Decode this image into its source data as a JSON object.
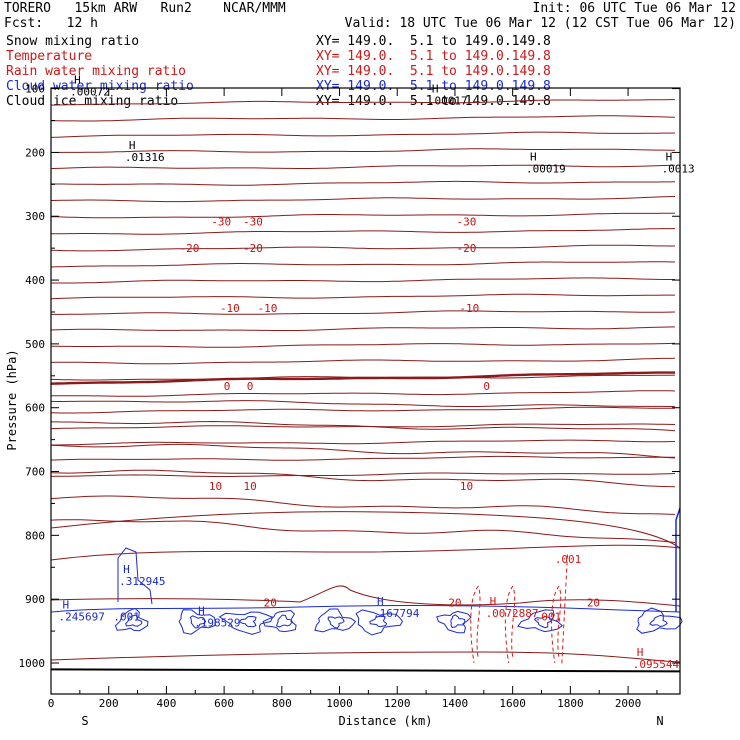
{
  "header": {
    "model": "TORERO   15km ARW   Run2    NCAR/MMM",
    "init": "Init: 06 UTC Tue 06 Mar 12",
    "fcst": "Fcst:   12 h",
    "valid": "Valid: 18 UTC Tue 06 Mar 12 (12 CST Tue 06 Mar 12)"
  },
  "legend": [
    {
      "name": "Snow mixing ratio",
      "xy": "XY= 149.0.  5.1 to 149.0.149.8",
      "color": "#000000"
    },
    {
      "name": "Temperature",
      "xy": "XY= 149.0.  5.1 to 149.0.149.8",
      "color": "#d01818"
    },
    {
      "name": "Rain water mixing ratio",
      "xy": "XY= 149.0.  5.1 to 149.0.149.8",
      "color": "#d01818"
    },
    {
      "name": "Cloud water mixing ratio",
      "xy": "XY= 149.0.  5.1 to 149.0.149.8",
      "color": "#1a2ad0"
    },
    {
      "name": "Cloud ice mixing ratio",
      "xy": "XY= 149.0.  5.1 to 149.0.149.8",
      "color": "#000000"
    }
  ],
  "chart_data": {
    "type": "cross-section contour",
    "xlabel": "Distance (km)",
    "ylabel": "Pressure (hPa)",
    "xlim": [
      0,
      2180
    ],
    "ylim": [
      1050,
      100
    ],
    "x_ticks": [
      0,
      200,
      400,
      600,
      800,
      1000,
      1200,
      1400,
      1600,
      1800,
      2000
    ],
    "y_ticks": [
      100,
      200,
      300,
      400,
      500,
      600,
      700,
      800,
      900,
      1000
    ],
    "end_labels": {
      "left": "S",
      "right": "N"
    },
    "temperature_isotherms": [
      {
        "value": -30,
        "label": "-30",
        "labels_at_km": [
          590,
          700,
          1440
        ]
      },
      {
        "value": -20,
        "label": "-20",
        "labels_at_km": [
          480,
          700,
          1440
        ]
      },
      {
        "value": -10,
        "label": "-10",
        "labels_at_km": [
          620,
          750,
          1450
        ]
      },
      {
        "value": 0,
        "label": "0",
        "labels_at_km": [
          610,
          690,
          1510
        ]
      },
      {
        "value": 10,
        "label": "10",
        "labels_at_km": [
          570,
          690,
          1440
        ]
      },
      {
        "value": 20,
        "label": "20",
        "labels_at_km": [
          760,
          1400,
          1880
        ]
      }
    ],
    "maxima_labels": [
      {
        "label": "H",
        "value": ".01316",
        "km": 270,
        "hpa": 210,
        "color": "#000000"
      },
      {
        "label": "H",
        "value": ".00019",
        "km": 1660,
        "hpa": 228,
        "color": "#000000"
      },
      {
        "label": "H",
        "value": ".0013",
        "km": 2130,
        "hpa": 228,
        "color": "#000000"
      },
      {
        "label": "H",
        "value": ".00017",
        "km": 1320,
        "hpa": 122,
        "color": "#000000"
      },
      {
        "label": "H",
        "value": ".00072",
        "km": 80,
        "hpa": 108,
        "color": "#000000"
      },
      {
        "label": "H",
        "value": ".312945",
        "km": 250,
        "hpa": 875,
        "color": "#1a2ad0"
      },
      {
        "label": "H",
        "value": ".245697",
        "km": 40,
        "hpa": 930,
        "color": "#1a2ad0"
      },
      {
        "label": "",
        "value": ".001",
        "km": 230,
        "hpa": 930,
        "color": "#1a2ad0"
      },
      {
        "label": "H",
        "value": ".198529",
        "km": 510,
        "hpa": 940,
        "color": "#1a2ad0"
      },
      {
        "label": "H",
        "value": ".167794",
        "km": 1130,
        "hpa": 925,
        "color": "#1a2ad0"
      },
      {
        "label": "H",
        "value": ".0072887",
        "km": 1520,
        "hpa": 925,
        "color": "#d01818"
      },
      {
        "label": "",
        "value": ".001",
        "km": 1760,
        "hpa": 840,
        "color": "#d01818"
      },
      {
        "label": "",
        "value": ".001",
        "km": 1690,
        "hpa": 930,
        "color": "#d01818"
      },
      {
        "label": "H",
        "value": ".095544",
        "km": 2030,
        "hpa": 1005,
        "color": "#d01818"
      }
    ],
    "cloud_water_objects_km": [
      280,
      500,
      680,
      800,
      980,
      1130,
      1400,
      1700,
      2100
    ],
    "rain_water_objects_km": [
      1480,
      1600,
      1760
    ],
    "surface_pressure_hpa": 1010
  },
  "colors": {
    "temperature": "#8b1a1a",
    "temp_label": "#c01515",
    "cloud_water": "#1a2ad0",
    "rain": "#e01818",
    "axis": "#000000"
  }
}
